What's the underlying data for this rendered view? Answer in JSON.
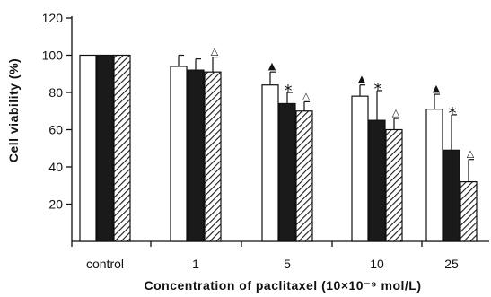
{
  "chart_data": {
    "type": "bar",
    "title": "",
    "xlabel": "Concentration of paclitaxel (10×10⁻⁹ mol/L)",
    "ylabel": "Cell viability (%)",
    "ylim": [
      0,
      120
    ],
    "yticks": [
      20,
      40,
      60,
      80,
      100,
      120
    ],
    "categories": [
      "control",
      "1",
      "5",
      "10",
      "25"
    ],
    "grid": false,
    "legend": "none",
    "series": [
      {
        "fill": "#ffffff",
        "pattern": "solid",
        "values": [
          100,
          94,
          84,
          78,
          71
        ],
        "errors": [
          0,
          6,
          7,
          6,
          8
        ]
      },
      {
        "fill": "#1a1a1a",
        "pattern": "solid",
        "values": [
          100,
          92,
          74,
          65,
          49
        ],
        "errors": [
          0,
          6,
          6,
          16,
          19
        ]
      },
      {
        "fill": "#ffffff",
        "pattern": "diagonal-hatch",
        "values": [
          100,
          91,
          70,
          60,
          32
        ],
        "errors": [
          0,
          8,
          5,
          6,
          12
        ]
      }
    ],
    "annotations": [
      {
        "symbol": "△",
        "category": "1",
        "series": 2
      },
      {
        "symbol": "▲",
        "category": "5",
        "series": 0
      },
      {
        "symbol": "*",
        "category": "5",
        "series": 1
      },
      {
        "symbol": "△",
        "category": "5",
        "series": 2
      },
      {
        "symbol": "▲",
        "category": "10",
        "series": 0
      },
      {
        "symbol": "*",
        "category": "10",
        "series": 1
      },
      {
        "symbol": "△",
        "category": "10",
        "series": 2
      },
      {
        "symbol": "▲",
        "category": "25",
        "series": 0
      },
      {
        "symbol": "*",
        "category": "25",
        "series": 1
      },
      {
        "symbol": "△",
        "category": "25",
        "series": 2
      }
    ]
  }
}
